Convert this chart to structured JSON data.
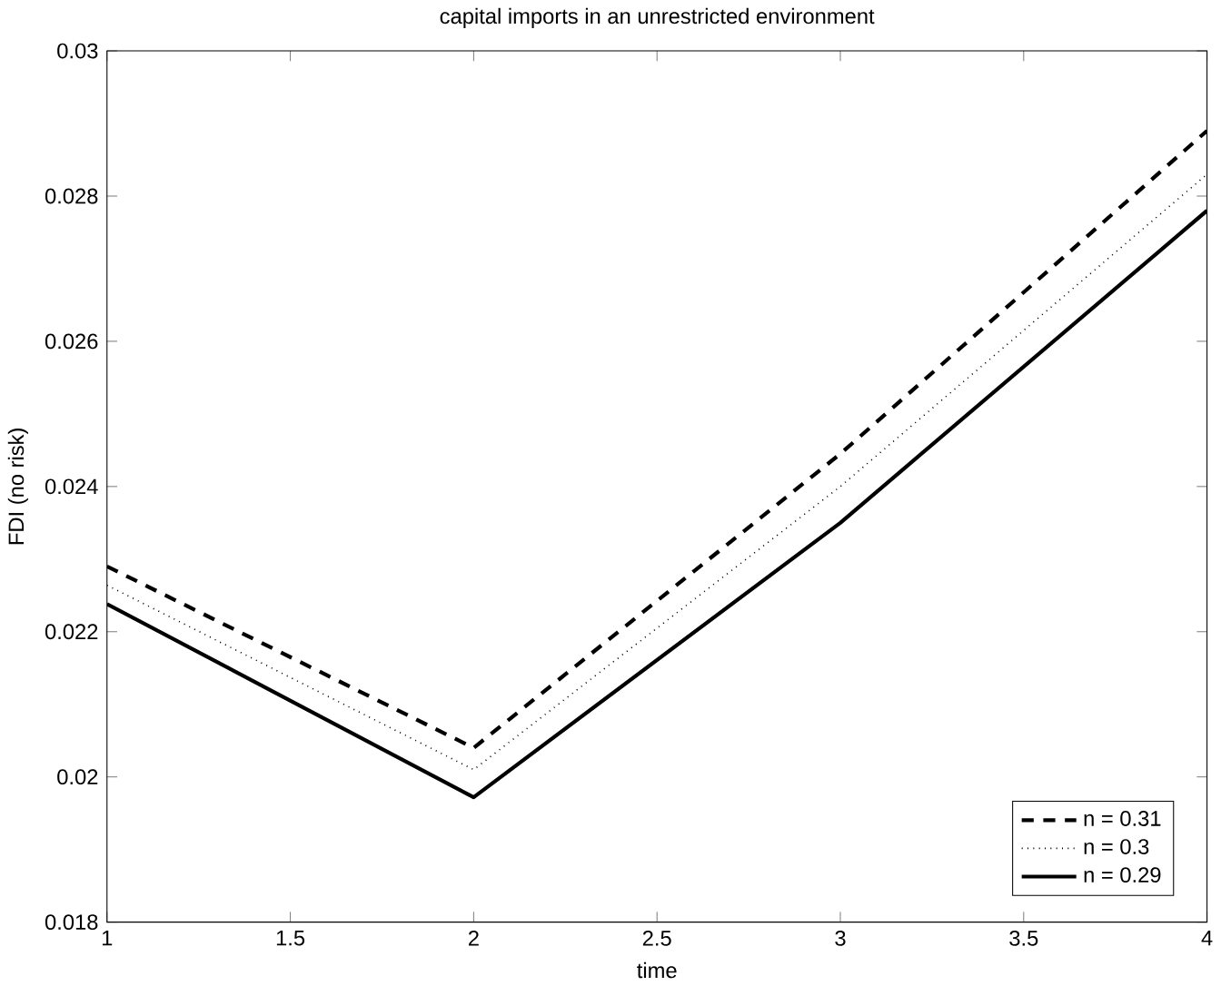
{
  "chart_data": {
    "type": "line",
    "title": "capital imports in an unrestricted environment",
    "xlabel": "time",
    "ylabel": "FDI (no risk)",
    "x": [
      1,
      2,
      3,
      4
    ],
    "series": [
      {
        "name": "n = 0.31",
        "color": "#000000",
        "line_style": "dashed",
        "values": [
          0.0229,
          0.0204,
          0.02445,
          0.0289
        ]
      },
      {
        "name": "n = 0.3",
        "color": "#000000",
        "line_style": "dotted",
        "values": [
          0.02264,
          0.0201,
          0.024,
          0.0283
        ]
      },
      {
        "name": "n = 0.29",
        "color": "#000000",
        "line_style": "solid",
        "values": [
          0.02238,
          0.01972,
          0.0235,
          0.0278
        ]
      }
    ],
    "xlim": [
      1,
      4
    ],
    "ylim": [
      0.018,
      0.03
    ],
    "xticks": [
      1,
      1.5,
      2,
      2.5,
      3,
      3.5,
      4
    ],
    "yticks": [
      0.018,
      0.02,
      0.022,
      0.024,
      0.026,
      0.028,
      0.03
    ],
    "legend": "bottom right",
    "grid": false,
    "marker": "none"
  }
}
